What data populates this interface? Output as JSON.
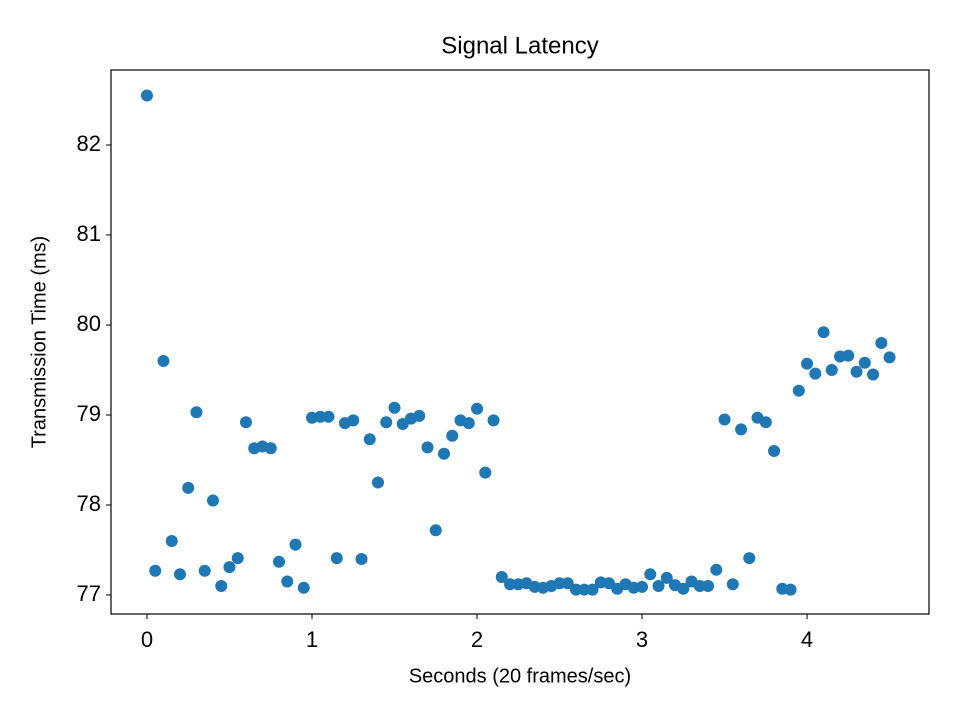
{
  "chart_data": {
    "type": "scatter",
    "title": "Signal Latency",
    "x_label": "Seconds (20 frames/sec)",
    "y_label": "Transmission Time (ms)",
    "color": "#1f77b4",
    "x": [
      0,
      0.05,
      0.1,
      0.15,
      0.2,
      0.25,
      0.3,
      0.35,
      0.4,
      0.45,
      0.5,
      0.55,
      0.6,
      0.65,
      0.7,
      0.75,
      0.8,
      0.85,
      0.9,
      0.95,
      1,
      1.05,
      1.1,
      1.15,
      1.2,
      1.25,
      1.3,
      1.35,
      1.4,
      1.45,
      1.5,
      1.55,
      1.6,
      1.65,
      1.7,
      1.75,
      1.8,
      1.85,
      1.9,
      1.95,
      2,
      2.05,
      2.1,
      2.15,
      2.2,
      2.25,
      2.3,
      2.35,
      2.4,
      2.45,
      2.5,
      2.55,
      2.6,
      2.65,
      2.7,
      2.75,
      2.8,
      2.85,
      2.9,
      2.95,
      3,
      3.05,
      3.1,
      3.15,
      3.2,
      3.25,
      3.3,
      3.35,
      3.4,
      3.45,
      3.5,
      3.55,
      3.6,
      3.65,
      3.7,
      3.75,
      3.8,
      3.85,
      3.9,
      3.95,
      4,
      4.05,
      4.1,
      4.15,
      4.2,
      4.25,
      4.3,
      4.35,
      4.4,
      4.45,
      4.5
    ],
    "values": [
      82.55,
      77.27,
      79.6,
      77.6,
      77.23,
      78.19,
      79.03,
      77.27,
      78.05,
      77.1,
      77.31,
      77.41,
      78.92,
      78.63,
      78.65,
      78.63,
      77.37,
      77.15,
      77.56,
      77.08,
      78.97,
      78.98,
      78.98,
      77.41,
      78.91,
      78.94,
      77.4,
      78.73,
      78.25,
      78.92,
      79.08,
      78.9,
      78.96,
      78.99,
      78.64,
      77.72,
      78.57,
      78.77,
      78.94,
      78.91,
      79.07,
      78.36,
      78.94,
      77.2,
      77.12,
      77.12,
      77.13,
      77.09,
      77.08,
      77.1,
      77.13,
      77.13,
      77.06,
      77.06,
      77.06,
      77.14,
      77.13,
      77.07,
      77.12,
      77.08,
      77.09,
      77.23,
      77.1,
      77.19,
      77.11,
      77.07,
      77.15,
      77.1,
      77.1,
      77.28,
      78.95,
      77.12,
      78.84,
      77.41,
      78.97,
      78.92,
      78.6,
      77.07,
      77.06,
      79.27,
      79.57,
      79.46,
      79.92,
      79.5,
      79.65,
      79.66,
      79.48,
      79.58,
      79.45,
      79.8,
      79.64
    ],
    "xlim": [
      -0.218,
      4.739
    ],
    "ylim": [
      76.789,
      82.833
    ],
    "xticks": [
      0,
      1,
      2,
      3,
      4
    ],
    "yticks": [
      77,
      78,
      79,
      80,
      81,
      82
    ],
    "grid": false
  }
}
